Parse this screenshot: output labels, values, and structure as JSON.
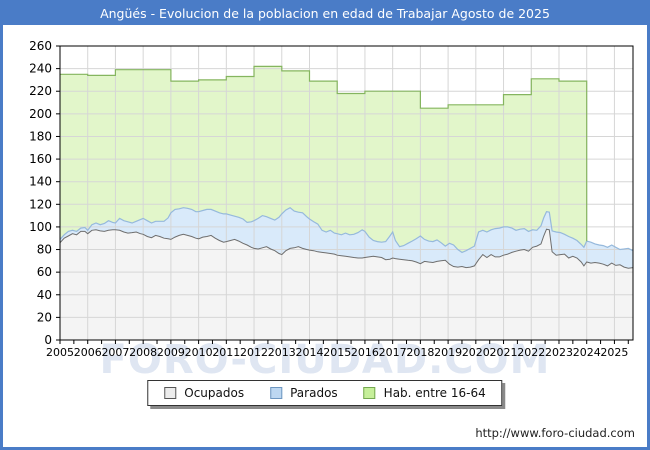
{
  "window": {
    "title": "Angüés - Evolucion de la poblacion en edad de Trabajar Agosto de 2025"
  },
  "watermark": "FORO-CIUDAD.COM",
  "footer": {
    "url": "http://www.foro-ciudad.com"
  },
  "legend": {
    "items": [
      {
        "label": "Ocupados",
        "fill": "#ececec",
        "border": "#555555"
      },
      {
        "label": "Parados",
        "fill": "#bdd7f1",
        "border": "#6d96c0"
      },
      {
        "label": "Hab. entre 16-64",
        "fill": "#c6ef9a",
        "border": "#74a850"
      }
    ]
  },
  "chart_data": {
    "type": "area",
    "title": "Angüés - Evolucion de la poblacion en edad de Trabajar Agosto de 2025",
    "xlabel": "",
    "ylabel": "",
    "x_range": [
      2005,
      2025.67
    ],
    "y_range": [
      0,
      260
    ],
    "y_tick_step": 20,
    "x_ticks": [
      2005,
      2006,
      2007,
      2008,
      2009,
      2010,
      2011,
      2012,
      2013,
      2014,
      2015,
      2016,
      2017,
      2018,
      2019,
      2020,
      2021,
      2022,
      2023,
      2024,
      2025
    ],
    "grid": true,
    "legend_position": "bottom",
    "colors": {
      "green_fill": "#e2f6ca",
      "green_line": "#85b55f",
      "blue_fill": "#d9eafa",
      "blue_line": "#96b9dc",
      "grey_fill": "#f4f4f4",
      "grey_line": "#6e6e6e",
      "grid": "#d6d6d6",
      "axis": "#000000"
    },
    "x": [
      2005.0,
      2005.15,
      2005.3,
      2005.45,
      2005.6,
      2005.75,
      2005.9,
      2006.0,
      2006.15,
      2006.3,
      2006.45,
      2006.6,
      2006.75,
      2006.9,
      2007.0,
      2007.15,
      2007.3,
      2007.45,
      2007.6,
      2007.75,
      2007.9,
      2008.0,
      2008.15,
      2008.3,
      2008.45,
      2008.6,
      2008.75,
      2008.9,
      2009.0,
      2009.15,
      2009.3,
      2009.45,
      2009.6,
      2009.75,
      2009.9,
      2010.0,
      2010.15,
      2010.3,
      2010.45,
      2010.6,
      2010.75,
      2010.9,
      2011.0,
      2011.15,
      2011.3,
      2011.45,
      2011.6,
      2011.75,
      2011.9,
      2012.0,
      2012.15,
      2012.3,
      2012.45,
      2012.6,
      2012.75,
      2012.9,
      2013.0,
      2013.15,
      2013.3,
      2013.45,
      2013.6,
      2013.75,
      2013.9,
      2014.0,
      2014.15,
      2014.3,
      2014.45,
      2014.6,
      2014.75,
      2014.9,
      2015.0,
      2015.15,
      2015.3,
      2015.45,
      2015.6,
      2015.75,
      2015.9,
      2016.0,
      2016.15,
      2016.3,
      2016.45,
      2016.6,
      2016.75,
      2016.9,
      2017.0,
      2017.1,
      2017.25,
      2017.4,
      2017.55,
      2017.7,
      2017.85,
      2018.0,
      2018.15,
      2018.3,
      2018.45,
      2018.6,
      2018.75,
      2018.9,
      2019.05,
      2019.2,
      2019.35,
      2019.5,
      2019.65,
      2019.8,
      2019.95,
      2020.1,
      2020.25,
      2020.4,
      2020.55,
      2020.7,
      2020.85,
      2021.0,
      2021.15,
      2021.3,
      2021.45,
      2021.6,
      2021.75,
      2021.9,
      2022.05,
      2022.2,
      2022.35,
      2022.45,
      2022.55,
      2022.65,
      2022.75,
      2022.9,
      2023.05,
      2023.2,
      2023.35,
      2023.5,
      2023.65,
      2023.8,
      2023.9,
      2024.0,
      2024.15,
      2024.3,
      2024.45,
      2024.6,
      2024.75,
      2024.9,
      2025.05,
      2025.2,
      2025.35,
      2025.5,
      2025.67
    ],
    "series": [
      {
        "name": "Ocupados",
        "type": "area_line",
        "values": [
          86,
          90,
          92,
          94,
          93,
          96,
          96,
          94,
          97,
          97.5,
          96.5,
          96,
          97,
          97.5,
          97.5,
          97,
          95.5,
          94.5,
          95,
          95.5,
          94,
          93.5,
          91.5,
          90.5,
          92.5,
          91.5,
          90,
          89.5,
          89,
          91,
          92.5,
          93.5,
          92.5,
          91.5,
          90,
          89.5,
          91,
          91.5,
          92.5,
          90,
          88,
          86.5,
          87,
          88,
          89,
          87.5,
          85.5,
          84,
          82,
          81,
          80.5,
          81.5,
          82.5,
          80.5,
          79,
          76.5,
          75.5,
          79,
          81,
          81.5,
          82.5,
          81,
          80,
          79.5,
          79,
          78,
          77.5,
          77,
          76.5,
          76,
          75,
          74.5,
          74,
          73.5,
          73,
          72.5,
          72.5,
          73,
          73.5,
          74,
          73.5,
          73,
          71,
          71.5,
          72.5,
          72,
          71.5,
          71,
          70.5,
          70,
          69,
          67.5,
          69.5,
          69,
          68.5,
          69.5,
          70,
          70.5,
          67,
          65,
          64.5,
          65,
          64,
          64.5,
          65.5,
          71,
          75.5,
          73,
          75.5,
          73.5,
          73.5,
          75,
          76,
          77.5,
          78.5,
          79.5,
          80,
          78.5,
          82,
          83,
          85,
          92,
          98,
          97.5,
          78,
          75,
          75.5,
          76,
          72.5,
          74,
          72.5,
          69,
          65.5,
          69,
          68,
          68.5,
          68,
          67,
          65.5,
          68,
          66,
          66.5,
          64.5,
          63.5,
          64
        ]
      },
      {
        "name": "Parados",
        "type": "area_line",
        "stacked_on": "Ocupados",
        "note": "values are the top of the stacked band (Ocupados + Parados)",
        "values": [
          89,
          93,
          96,
          97,
          96,
          99,
          99.5,
          97,
          102,
          103.5,
          102,
          103,
          105.5,
          104,
          103.5,
          107.5,
          105.5,
          104.5,
          103.5,
          105,
          106.5,
          107.5,
          105.5,
          103.5,
          105,
          105,
          105,
          108,
          112.5,
          115.5,
          116,
          117,
          116.5,
          115.5,
          113.5,
          113.5,
          114.5,
          115.5,
          115.5,
          114,
          112.5,
          111.5,
          111.5,
          110.5,
          109.5,
          108.5,
          107,
          104,
          104.5,
          105.5,
          107.5,
          110,
          109,
          107.5,
          106,
          108.5,
          111.5,
          115,
          117,
          114,
          113,
          112.5,
          109,
          107,
          104.5,
          102.5,
          97,
          95.5,
          97,
          94.5,
          94,
          93,
          94.5,
          93,
          93.5,
          95,
          97.5,
          96,
          91,
          88,
          87,
          86.5,
          87,
          92,
          95.5,
          88,
          82.5,
          83.5,
          85.5,
          87.5,
          89.5,
          92,
          89,
          87.5,
          87,
          88.5,
          86,
          83,
          85.5,
          84,
          80,
          77.5,
          79,
          81,
          83,
          95.5,
          97,
          95.5,
          97.5,
          98.5,
          99,
          100,
          100,
          99,
          97,
          98,
          98.5,
          96,
          97.5,
          97,
          101,
          108,
          113.5,
          113,
          96.5,
          95.5,
          95,
          93.5,
          91.5,
          90,
          88,
          84.5,
          82,
          87.5,
          86.5,
          85,
          84,
          83.5,
          82,
          84,
          82,
          80,
          80.5,
          81,
          79
        ]
      },
      {
        "name": "Hab. entre 16-64",
        "type": "step_area",
        "years": [
          2005,
          2006,
          2007,
          2008,
          2009,
          2010,
          2011,
          2012,
          2013,
          2014,
          2015,
          2016,
          2017,
          2018,
          2019,
          2020,
          2021,
          2022,
          2023
        ],
        "values": [
          235,
          234,
          239,
          239,
          229,
          230,
          233,
          242,
          238,
          229,
          218,
          220,
          220,
          205,
          208,
          208,
          217,
          231,
          229
        ],
        "end_year": 2024,
        "end_drop_to": 87.5
      }
    ]
  }
}
